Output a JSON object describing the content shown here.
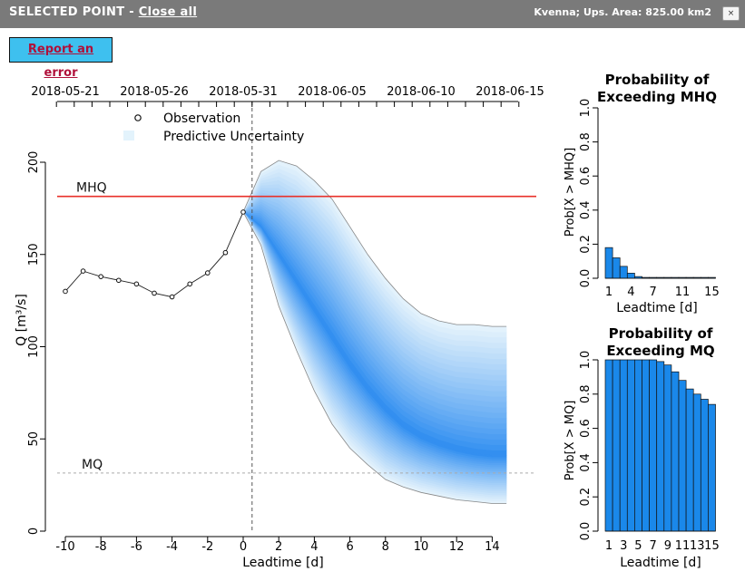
{
  "window": {
    "title_prefix": "SELECTED POINT -",
    "close_all_label": "Close all",
    "station_info": "Kvenna; Ups. Area: 825.00 km2",
    "close_symbol": "×"
  },
  "report_button_label": "Report an error",
  "chart_data": [
    {
      "type": "line",
      "id": "main",
      "xlabel": "Leadtime [d]",
      "ylabel": "Q [m³/s]",
      "xlim": [
        -10.5,
        15
      ],
      "ylim": [
        0,
        200
      ],
      "x_ticks": [
        -10,
        -8,
        -6,
        -4,
        -2,
        0,
        2,
        4,
        6,
        8,
        10,
        12,
        14
      ],
      "y_ticks": [
        0,
        50,
        100,
        150,
        200
      ],
      "top_date_ticks": [
        {
          "label": "2018-05-21",
          "leadtime": -10
        },
        {
          "label": "2018-05-26",
          "leadtime": -5
        },
        {
          "label": "2018-05-31",
          "leadtime": 0
        },
        {
          "label": "2018-06-05",
          "leadtime": 5
        },
        {
          "label": "2018-06-10",
          "leadtime": 10
        },
        {
          "label": "2018-06-15",
          "leadtime": 15
        }
      ],
      "legend": {
        "position": "top-center",
        "items": [
          {
            "label": "Observation",
            "symbol": "open-circle"
          },
          {
            "label": "Predictive Uncertainty",
            "symbol": "shaded-box"
          }
        ]
      },
      "observations": {
        "name": "Observation",
        "x": [
          -10,
          -9,
          -8,
          -7,
          -6,
          -5,
          -4,
          -3,
          -2,
          -1,
          0
        ],
        "y": [
          130,
          141,
          138,
          136,
          134,
          129,
          127,
          134,
          140,
          151,
          173
        ]
      },
      "forecast": {
        "x": [
          0,
          1,
          2,
          3,
          4,
          5,
          6,
          7,
          8,
          9,
          10,
          11,
          12,
          13,
          14,
          14.8
        ],
        "median": [
          173,
          165,
          150,
          135,
          120,
          105,
          90,
          77,
          66,
          57,
          51,
          47,
          44,
          42,
          41,
          41
        ],
        "upper": [
          173,
          195,
          201,
          198,
          190,
          180,
          165,
          150,
          137,
          126,
          118,
          114,
          112,
          112,
          111,
          111
        ],
        "lower": [
          173,
          155,
          122,
          98,
          76,
          58,
          45,
          36,
          28,
          24,
          21,
          19,
          17,
          16,
          15,
          15
        ]
      },
      "thresholds": [
        {
          "label": "MHQ",
          "value": 181.5,
          "color": "#e8312a",
          "style": "solid"
        },
        {
          "label": "MQ",
          "value": 31.5,
          "color": "#aaaaaa",
          "style": "dotted"
        }
      ],
      "forecast_start": 0.5,
      "colors": {
        "band_core": "#2d8cf0",
        "band_edge": "#e6f4fc",
        "line": "#222222"
      }
    },
    {
      "type": "bar",
      "id": "mhq",
      "title": "Probability of\nExceeding MHQ",
      "xlabel": "Leadtime [d]",
      "ylabel": "Prob[X > MHQ]",
      "ylim": [
        0,
        1
      ],
      "y_ticks": [
        0.0,
        0.2,
        0.4,
        0.6,
        0.8,
        1.0
      ],
      "x_ticks": [
        1,
        4,
        7,
        11,
        15
      ],
      "categories": [
        1,
        2,
        3,
        4,
        5,
        6,
        7,
        8,
        9,
        10,
        11,
        12,
        13,
        14,
        15
      ],
      "values": [
        0.18,
        0.12,
        0.07,
        0.03,
        0.01,
        0.005,
        0.005,
        0.005,
        0.005,
        0.005,
        0.005,
        0.005,
        0.005,
        0.005,
        0.005
      ],
      "colors": {
        "bar": "#1a88ea"
      }
    },
    {
      "type": "bar",
      "id": "mq",
      "title": "Probability of\nExceeding MQ",
      "xlabel": "Leadtime [d]",
      "ylabel": "Prob[X > MQ]",
      "ylim": [
        0,
        1
      ],
      "y_ticks": [
        0.0,
        0.2,
        0.4,
        0.6,
        0.8,
        1.0
      ],
      "x_ticks": [
        1,
        3,
        5,
        7,
        9,
        11,
        13,
        15
      ],
      "categories": [
        1,
        2,
        3,
        4,
        5,
        6,
        7,
        8,
        9,
        10,
        11,
        12,
        13,
        14,
        15
      ],
      "values": [
        1.0,
        1.0,
        1.0,
        1.0,
        1.0,
        1.0,
        1.0,
        0.99,
        0.97,
        0.93,
        0.88,
        0.83,
        0.8,
        0.77,
        0.74
      ],
      "colors": {
        "bar": "#1a88ea"
      }
    }
  ]
}
